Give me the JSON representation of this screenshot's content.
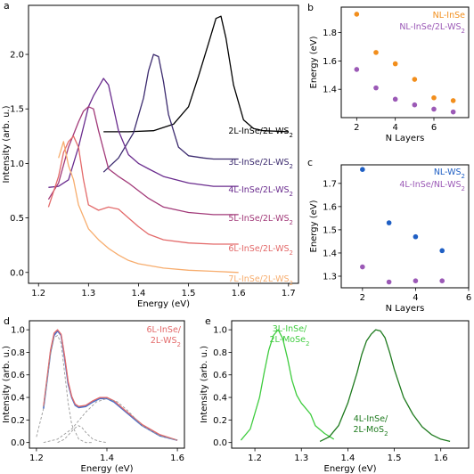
{
  "chart_data": [
    {
      "panel": "a",
      "type": "line",
      "xlabel": "Energy (eV)",
      "ylabel": "Intensity (arb. u.)",
      "xlim": [
        1.18,
        1.72
      ],
      "ylim": [
        -0.1,
        2.45
      ],
      "xticks": [
        "1.2",
        "1.3",
        "1.4",
        "1.5",
        "1.6",
        "1.7"
      ],
      "yticks": [
        "0.0",
        "0.5",
        "1.0",
        "1.5",
        "2.0"
      ],
      "series": [
        {
          "name": "2L-InSe/2L-WS2",
          "label_base": "2L-InSe/2L-WS",
          "label_sub": "2",
          "color": "#000000",
          "x": [
            1.33,
            1.38,
            1.43,
            1.47,
            1.5,
            1.52,
            1.54,
            1.555,
            1.565,
            1.575,
            1.59,
            1.61,
            1.63,
            1.65,
            1.7
          ],
          "y": [
            1.29,
            1.29,
            1.3,
            1.36,
            1.52,
            1.8,
            2.1,
            2.33,
            2.35,
            2.15,
            1.72,
            1.4,
            1.32,
            1.3,
            1.29
          ]
        },
        {
          "name": "3L-InSe/2L-WS2",
          "label_base": "3L-InSe/2L-WS",
          "label_sub": "2",
          "color": "#3b2a6e",
          "x": [
            1.33,
            1.36,
            1.39,
            1.41,
            1.42,
            1.43,
            1.44,
            1.45,
            1.46,
            1.48,
            1.5,
            1.53,
            1.55,
            1.6
          ],
          "y": [
            0.92,
            1.05,
            1.28,
            1.6,
            1.85,
            2.0,
            1.98,
            1.75,
            1.45,
            1.15,
            1.07,
            1.05,
            1.04,
            1.04
          ]
        },
        {
          "name": "4L-InSe/2L-WS2",
          "label_base": "4L-InSe/2L-WS",
          "label_sub": "2",
          "color": "#6a2c8e",
          "x": [
            1.22,
            1.24,
            1.26,
            1.28,
            1.3,
            1.31,
            1.32,
            1.33,
            1.34,
            1.36,
            1.38,
            1.4,
            1.42,
            1.45,
            1.5,
            1.55,
            1.6
          ],
          "y": [
            0.78,
            0.79,
            0.85,
            1.15,
            1.52,
            1.62,
            1.7,
            1.78,
            1.72,
            1.3,
            1.08,
            1.0,
            0.95,
            0.88,
            0.82,
            0.79,
            0.79
          ]
        },
        {
          "name": "5L-InSe/2L-WS2",
          "label_base": "5L-InSe/2L-WS",
          "label_sub": "2",
          "color": "#a23a79",
          "x": [
            1.22,
            1.24,
            1.26,
            1.28,
            1.29,
            1.3,
            1.31,
            1.32,
            1.34,
            1.36,
            1.38,
            1.4,
            1.42,
            1.45,
            1.5,
            1.55,
            1.6
          ],
          "y": [
            0.67,
            0.82,
            1.15,
            1.38,
            1.48,
            1.52,
            1.5,
            1.3,
            0.95,
            0.88,
            0.82,
            0.75,
            0.68,
            0.6,
            0.55,
            0.53,
            0.53
          ]
        },
        {
          "name": "6L-InSe/2L-WS2",
          "label_base": "6L-InSe/2L-WS",
          "label_sub": "2",
          "color": "#e36a6a",
          "x": [
            1.22,
            1.24,
            1.25,
            1.26,
            1.27,
            1.28,
            1.29,
            1.3,
            1.32,
            1.34,
            1.36,
            1.38,
            1.4,
            1.42,
            1.45,
            1.5,
            1.55,
            1.6
          ],
          "y": [
            0.6,
            0.88,
            1.1,
            1.2,
            1.25,
            1.15,
            0.85,
            0.62,
            0.57,
            0.6,
            0.58,
            0.5,
            0.42,
            0.35,
            0.3,
            0.27,
            0.26,
            0.26
          ]
        },
        {
          "name": "7L-InSe/2L-WS2",
          "label_base": "7L-InSe/2L-WS",
          "label_sub": "2",
          "color": "#f7ad6e",
          "x": [
            1.24,
            1.25,
            1.26,
            1.27,
            1.28,
            1.3,
            1.32,
            1.34,
            1.36,
            1.38,
            1.4,
            1.45,
            1.5,
            1.55,
            1.6
          ],
          "y": [
            1.05,
            1.2,
            0.98,
            0.85,
            0.62,
            0.4,
            0.3,
            0.22,
            0.16,
            0.11,
            0.08,
            0.04,
            0.02,
            0.01,
            0.0
          ]
        }
      ]
    },
    {
      "panel": "b",
      "type": "scatter",
      "xlabel": "N Layers",
      "ylabel": "Energy (eV)",
      "xlim": [
        1.2,
        7.8
      ],
      "ylim": [
        1.2,
        1.98
      ],
      "xticks": [
        "2",
        "4",
        "6",
        "8"
      ],
      "yticks": [
        "1.4",
        "1.6",
        "1.8"
      ],
      "series": [
        {
          "name": "NL-InSe",
          "color": "#f28e1c",
          "x": [
            2,
            3,
            4,
            5,
            6,
            7
          ],
          "y": [
            1.93,
            1.66,
            1.58,
            1.47,
            1.34,
            1.32
          ]
        },
        {
          "name": "NL-InSe/2L-WS2",
          "label_base": "NL-InSe/2L-WS",
          "label_sub": "2",
          "color": "#9b59b6",
          "x": [
            2,
            3,
            4,
            5,
            6,
            7
          ],
          "y": [
            1.54,
            1.41,
            1.33,
            1.29,
            1.26,
            1.24
          ]
        }
      ]
    },
    {
      "panel": "c",
      "type": "scatter",
      "xlabel": "N Layers",
      "ylabel": "Energy (eV)",
      "xlim": [
        1.2,
        6.0
      ],
      "ylim": [
        1.25,
        1.78
      ],
      "xticks": [
        "2",
        "4",
        "6"
      ],
      "yticks": [
        "1.3",
        "1.4",
        "1.5",
        "1.6",
        "1.7"
      ],
      "series": [
        {
          "name": "NL-WS2",
          "label_base": "NL-WS",
          "label_sub": "2",
          "color": "#1f5fc4",
          "x": [
            2,
            3,
            4,
            5
          ],
          "y": [
            1.76,
            1.53,
            1.47,
            1.41
          ]
        },
        {
          "name": "4L-InSe/NL-WS2",
          "label_base": "4L-InSe/NL-WS",
          "label_sub": "2",
          "color": "#9b59b6",
          "x": [
            2,
            3,
            4,
            5
          ],
          "y": [
            1.34,
            1.275,
            1.28,
            1.28
          ]
        }
      ]
    },
    {
      "panel": "d",
      "type": "line",
      "xlabel": "Energy (eV)",
      "ylabel": "Intensity (arb. u.)",
      "xlim": [
        1.18,
        1.62
      ],
      "ylim": [
        -0.05,
        1.08
      ],
      "xticks": [
        "1.2",
        "1.4",
        "1.6"
      ],
      "yticks": [
        "0.0",
        "0.2",
        "0.4",
        "0.6",
        "0.8",
        "1.0"
      ],
      "label_lines": [
        {
          "base": "6L-InSe/",
          "sub": ""
        },
        {
          "base": "2L-WS",
          "sub": "2"
        }
      ],
      "label_color": "#e36a6a",
      "series": [
        {
          "name": "data",
          "color": "#4a6fc9",
          "width": 1.6,
          "x": [
            1.22,
            1.23,
            1.24,
            1.25,
            1.26,
            1.27,
            1.28,
            1.29,
            1.3,
            1.31,
            1.32,
            1.34,
            1.36,
            1.38,
            1.4,
            1.42,
            1.45,
            1.5,
            1.55,
            1.6
          ],
          "y": [
            0.3,
            0.55,
            0.8,
            0.95,
            0.99,
            0.95,
            0.75,
            0.52,
            0.4,
            0.33,
            0.31,
            0.32,
            0.36,
            0.39,
            0.39,
            0.36,
            0.28,
            0.15,
            0.06,
            0.02
          ]
        },
        {
          "name": "fit",
          "color": "#e36a6a",
          "width": 1.3,
          "x": [
            1.22,
            1.23,
            1.24,
            1.25,
            1.26,
            1.27,
            1.28,
            1.29,
            1.3,
            1.31,
            1.32,
            1.34,
            1.36,
            1.38,
            1.4,
            1.42,
            1.45,
            1.5,
            1.55,
            1.6
          ],
          "y": [
            0.32,
            0.57,
            0.82,
            0.97,
            1.0,
            0.96,
            0.77,
            0.54,
            0.41,
            0.34,
            0.32,
            0.33,
            0.37,
            0.4,
            0.4,
            0.37,
            0.29,
            0.16,
            0.07,
            0.02
          ]
        },
        {
          "name": "peak-1",
          "color": "#999999",
          "dashed": true,
          "width": 0.9,
          "x": [
            1.2,
            1.22,
            1.24,
            1.25,
            1.26,
            1.27,
            1.28,
            1.29,
            1.3,
            1.32,
            1.34,
            1.36
          ],
          "y": [
            0.05,
            0.3,
            0.78,
            0.93,
            0.95,
            0.88,
            0.62,
            0.35,
            0.16,
            0.03,
            0.0,
            0.0
          ]
        },
        {
          "name": "peak-2",
          "color": "#999999",
          "dashed": true,
          "width": 0.9,
          "x": [
            1.26,
            1.28,
            1.3,
            1.31,
            1.32,
            1.33,
            1.34,
            1.36,
            1.38,
            1.4
          ],
          "y": [
            0.0,
            0.03,
            0.1,
            0.13,
            0.15,
            0.13,
            0.09,
            0.03,
            0.01,
            0.0
          ]
        },
        {
          "name": "peak-3",
          "color": "#999999",
          "dashed": true,
          "width": 0.9,
          "x": [
            1.22,
            1.26,
            1.3,
            1.34,
            1.37,
            1.4,
            1.43,
            1.46,
            1.5,
            1.55,
            1.6
          ],
          "y": [
            0.0,
            0.03,
            0.12,
            0.27,
            0.36,
            0.39,
            0.36,
            0.28,
            0.15,
            0.06,
            0.02
          ]
        }
      ]
    },
    {
      "panel": "e",
      "type": "line",
      "xlabel": "Energy (eV)",
      "ylabel": "Intensity (arb. u.)",
      "xlim": [
        1.15,
        1.66
      ],
      "ylim": [
        -0.05,
        1.08
      ],
      "xticks": [
        "1.2",
        "1.3",
        "1.4",
        "1.5",
        "1.6"
      ],
      "yticks": [
        "0.0",
        "0.2",
        "0.4",
        "0.6",
        "0.8",
        "1.0"
      ],
      "series": [
        {
          "name": "3L-InSe/2L-MoSe2",
          "label_lines": [
            {
              "base": "3L-InSe/",
              "sub": ""
            },
            {
              "base": "2L-MoSe",
              "sub": "2"
            }
          ],
          "color": "#3fcc3f",
          "x": [
            1.17,
            1.19,
            1.21,
            1.22,
            1.23,
            1.24,
            1.25,
            1.26,
            1.27,
            1.28,
            1.29,
            1.3,
            1.31,
            1.32,
            1.33,
            1.35,
            1.37
          ],
          "y": [
            0.02,
            0.12,
            0.4,
            0.62,
            0.82,
            0.95,
            1.0,
            0.92,
            0.75,
            0.55,
            0.42,
            0.35,
            0.3,
            0.25,
            0.15,
            0.08,
            0.03
          ]
        },
        {
          "name": "4L-InSe/2L-MoS2",
          "label_lines": [
            {
              "base": "4L-InSe/",
              "sub": ""
            },
            {
              "base": "2L-MoS",
              "sub": "2"
            }
          ],
          "color": "#1e7a1e",
          "x": [
            1.34,
            1.36,
            1.38,
            1.4,
            1.42,
            1.43,
            1.44,
            1.45,
            1.46,
            1.47,
            1.48,
            1.49,
            1.5,
            1.52,
            1.54,
            1.56,
            1.58,
            1.6,
            1.62
          ],
          "y": [
            0.01,
            0.05,
            0.15,
            0.35,
            0.62,
            0.78,
            0.9,
            0.96,
            1.0,
            0.99,
            0.93,
            0.8,
            0.65,
            0.4,
            0.25,
            0.14,
            0.07,
            0.03,
            0.01
          ]
        }
      ]
    }
  ],
  "panel_letters": [
    "a",
    "b",
    "c",
    "d",
    "e"
  ]
}
